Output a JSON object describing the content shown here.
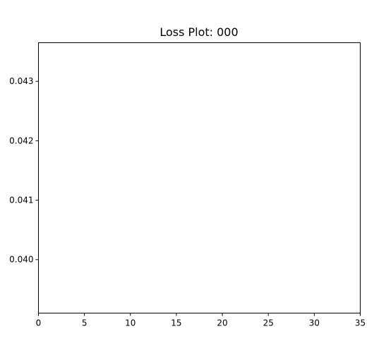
{
  "chart_data": {
    "type": "line",
    "title": "Loss Plot: 000",
    "xlabel": "",
    "ylabel": "",
    "xlim": [
      0,
      35
    ],
    "ylim": [
      0.0391,
      0.04365
    ],
    "x_ticks": [
      0,
      5,
      10,
      15,
      20,
      25,
      30,
      35
    ],
    "y_ticks": [
      0.04,
      0.041,
      0.042,
      0.043
    ],
    "x_tick_labels": [
      "0",
      "5",
      "10",
      "15",
      "20",
      "25",
      "30",
      "35"
    ],
    "y_tick_labels": [
      "0.040",
      "0.041",
      "0.042",
      "0.043"
    ],
    "grid": false,
    "series": [
      {
        "values": []
      }
    ]
  }
}
